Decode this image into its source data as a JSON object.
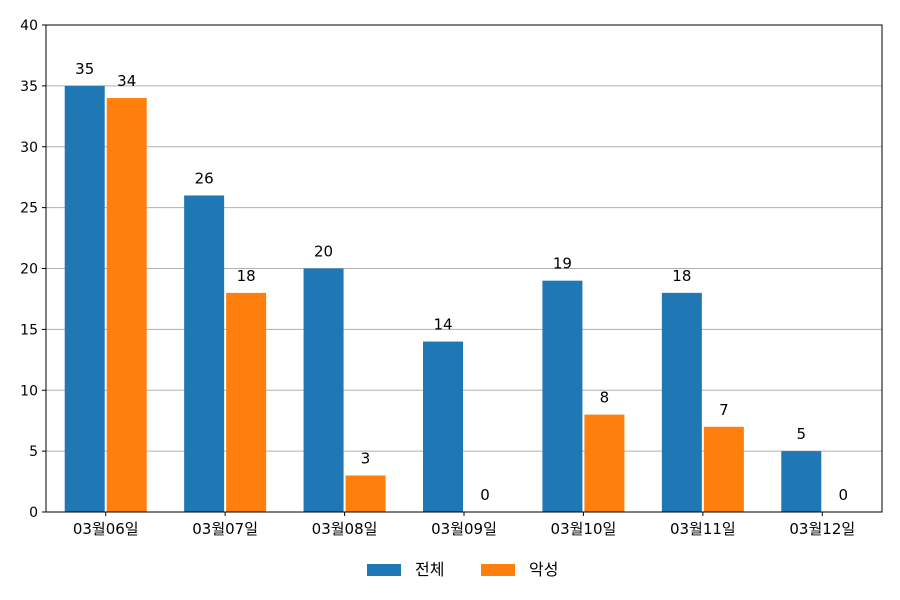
{
  "chart_data": {
    "type": "bar",
    "categories": [
      "03월06일",
      "03월07일",
      "03월08일",
      "03월09일",
      "03월10일",
      "03월11일",
      "03월12일"
    ],
    "series": [
      {
        "name": "전체",
        "color": "#1f77b4",
        "values": [
          35,
          26,
          20,
          14,
          19,
          18,
          5
        ]
      },
      {
        "name": "악성",
        "color": "#ff7f0e",
        "values": [
          34,
          18,
          3,
          0,
          8,
          7,
          0
        ]
      }
    ],
    "ylim": [
      0,
      40
    ],
    "yticks": [
      0,
      5,
      10,
      15,
      20,
      25,
      30,
      35,
      40
    ],
    "grid": "y",
    "legend_position": "bottom-center",
    "data_labels": true
  }
}
